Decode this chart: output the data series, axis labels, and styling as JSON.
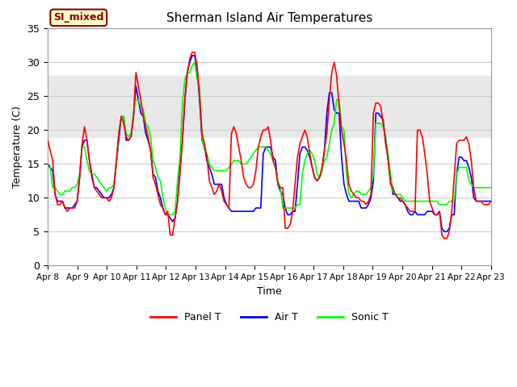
{
  "title": "Sherman Island Air Temperatures",
  "xlabel": "Time",
  "ylabel": "Temperature (C)",
  "ylim": [
    0,
    35
  ],
  "xlim": [
    0,
    15
  ],
  "x_tick_labels": [
    "Apr 8",
    "Apr 9",
    "Apr 10",
    "Apr 11",
    "Apr 12",
    "Apr 13",
    "Apr 14",
    "Apr 15",
    "Apr 16",
    "Apr 17",
    "Apr 18",
    "Apr 19",
    "Apr 20",
    "Apr 21",
    "Apr 22",
    "Apr 23"
  ],
  "gray_band_low": 19,
  "gray_band_high": 28,
  "label_text": "SI_mixed",
  "label_bg": "#ffffcc",
  "label_edge": "#8b0000",
  "legend_labels": [
    "Panel T",
    "Air T",
    "Sonic T"
  ],
  "line_colors": [
    "red",
    "blue",
    "lime"
  ],
  "plot_bg": "#ffffff",
  "grid_color": "#cccccc",
  "panel_t": [
    18.5,
    17.0,
    15.5,
    10.5,
    9.0,
    9.0,
    9.5,
    8.5,
    8.0,
    8.5,
    8.5,
    8.5,
    9.5,
    13.0,
    18.0,
    20.5,
    18.5,
    15.5,
    13.0,
    11.5,
    11.0,
    10.5,
    10.0,
    10.0,
    10.0,
    9.5,
    10.0,
    11.5,
    15.5,
    19.5,
    22.0,
    21.0,
    19.0,
    18.5,
    19.0,
    22.0,
    28.5,
    26.5,
    24.5,
    22.0,
    20.5,
    19.0,
    17.0,
    13.0,
    12.0,
    10.5,
    9.0,
    8.5,
    7.5,
    8.0,
    4.5,
    4.5,
    7.0,
    9.5,
    13.5,
    18.5,
    24.5,
    28.5,
    30.5,
    31.5,
    31.5,
    29.5,
    25.0,
    19.5,
    18.0,
    16.0,
    12.5,
    11.5,
    10.5,
    11.0,
    12.0,
    11.0,
    9.5,
    9.0,
    8.5,
    19.5,
    20.5,
    19.5,
    17.5,
    15.5,
    13.0,
    12.0,
    11.5,
    11.5,
    12.0,
    14.0,
    17.5,
    19.0,
    20.0,
    20.0,
    20.5,
    18.5,
    15.5,
    14.5,
    12.0,
    11.5,
    11.5,
    5.5,
    5.5,
    6.0,
    8.0,
    12.0,
    16.0,
    18.0,
    19.0,
    20.0,
    19.0,
    16.5,
    14.5,
    13.0,
    12.5,
    13.0,
    14.5,
    17.0,
    19.5,
    24.5,
    28.5,
    30.0,
    28.0,
    23.5,
    20.0,
    18.0,
    15.5,
    12.0,
    11.0,
    10.5,
    10.0,
    10.0,
    9.5,
    9.5,
    9.0,
    9.5,
    10.5,
    22.5,
    24.0,
    24.0,
    23.5,
    21.0,
    18.5,
    15.5,
    12.0,
    11.5,
    10.5,
    10.0,
    10.0,
    9.5,
    9.0,
    8.5,
    8.0,
    8.0,
    8.0,
    20.0,
    20.0,
    19.0,
    16.5,
    13.5,
    9.5,
    8.5,
    7.5,
    7.5,
    8.0,
    4.5,
    4.0,
    4.0,
    5.0,
    8.0,
    13.0,
    18.0,
    18.5,
    18.5,
    18.5,
    19.0,
    18.0,
    15.5,
    11.5,
    9.5,
    9.5,
    9.5,
    9.0,
    9.0,
    9.0,
    9.5
  ],
  "air_t": [
    15.0,
    14.5,
    14.0,
    10.5,
    9.5,
    9.5,
    9.5,
    8.5,
    8.5,
    8.5,
    8.5,
    9.0,
    9.5,
    13.0,
    17.5,
    18.5,
    18.5,
    15.5,
    13.5,
    11.5,
    11.5,
    11.0,
    10.5,
    10.0,
    10.0,
    10.0,
    10.5,
    11.5,
    15.0,
    18.5,
    22.0,
    22.0,
    18.5,
    18.5,
    19.0,
    22.0,
    26.5,
    24.5,
    22.5,
    22.0,
    19.5,
    18.5,
    17.0,
    13.5,
    13.0,
    11.0,
    10.0,
    8.5,
    7.5,
    7.5,
    7.0,
    6.5,
    7.0,
    9.5,
    14.5,
    18.5,
    24.5,
    28.5,
    30.0,
    31.0,
    31.0,
    29.0,
    24.5,
    18.5,
    17.5,
    15.5,
    14.5,
    13.5,
    12.0,
    12.0,
    12.0,
    12.0,
    10.0,
    9.0,
    8.5,
    8.0,
    8.0,
    8.0,
    8.0,
    8.0,
    8.0,
    8.0,
    8.0,
    8.0,
    8.0,
    8.5,
    8.5,
    8.5,
    16.5,
    17.5,
    17.5,
    17.5,
    16.0,
    15.5,
    12.0,
    11.0,
    10.5,
    8.5,
    7.5,
    7.5,
    8.0,
    8.0,
    12.0,
    16.5,
    17.5,
    17.5,
    17.0,
    16.0,
    14.5,
    13.0,
    12.5,
    13.0,
    14.0,
    17.0,
    22.5,
    25.5,
    25.5,
    23.0,
    22.5,
    22.5,
    16.0,
    12.0,
    10.5,
    9.5,
    9.5,
    9.5,
    9.5,
    9.5,
    8.5,
    8.5,
    8.5,
    9.0,
    10.0,
    12.5,
    22.5,
    22.5,
    22.0,
    21.5,
    18.0,
    16.0,
    13.0,
    10.5,
    10.5,
    10.0,
    9.5,
    9.5,
    9.0,
    8.0,
    7.5,
    7.5,
    8.0,
    7.5,
    7.5,
    7.5,
    7.5,
    8.0,
    8.0,
    8.0,
    7.5,
    7.5,
    8.0,
    5.5,
    5.0,
    5.0,
    5.5,
    7.5,
    7.5,
    13.5,
    16.0,
    16.0,
    15.5,
    15.5,
    14.5,
    13.0,
    10.0,
    9.5,
    9.5,
    9.5,
    9.5,
    9.5,
    9.5,
    9.5
  ],
  "sonic_t": [
    14.5,
    14.5,
    11.5,
    11.5,
    11.0,
    10.5,
    10.5,
    11.0,
    11.0,
    11.0,
    11.5,
    11.5,
    12.0,
    13.5,
    17.5,
    17.5,
    15.5,
    14.0,
    13.5,
    13.5,
    13.0,
    12.5,
    12.0,
    11.5,
    11.0,
    11.5,
    11.5,
    12.0,
    15.0,
    19.5,
    22.0,
    22.0,
    19.5,
    19.0,
    19.5,
    22.5,
    24.5,
    24.5,
    23.5,
    23.0,
    21.0,
    20.5,
    19.0,
    15.5,
    14.5,
    13.0,
    12.5,
    10.0,
    8.5,
    7.5,
    7.5,
    7.5,
    8.0,
    12.5,
    16.0,
    24.0,
    27.5,
    28.5,
    28.5,
    29.5,
    30.0,
    27.5,
    26.5,
    19.0,
    17.0,
    16.5,
    15.0,
    14.5,
    14.0,
    14.0,
    14.0,
    14.0,
    14.0,
    14.0,
    14.5,
    15.0,
    15.5,
    15.5,
    15.5,
    15.0,
    15.0,
    15.0,
    15.5,
    16.0,
    16.5,
    17.0,
    17.5,
    17.5,
    17.5,
    17.5,
    17.0,
    16.5,
    15.5,
    14.5,
    12.5,
    11.5,
    8.5,
    8.5,
    8.5,
    8.5,
    8.5,
    8.5,
    9.0,
    9.0,
    13.5,
    15.5,
    16.5,
    17.0,
    16.5,
    15.5,
    13.5,
    13.0,
    14.0,
    15.5,
    16.0,
    18.0,
    20.0,
    21.0,
    24.5,
    24.5,
    20.5,
    20.0,
    13.5,
    10.5,
    10.0,
    10.5,
    11.0,
    11.0,
    10.5,
    10.5,
    10.5,
    11.0,
    11.5,
    13.5,
    21.0,
    21.0,
    21.0,
    20.5,
    19.0,
    16.5,
    13.5,
    11.0,
    10.5,
    10.5,
    10.5,
    10.0,
    9.5,
    9.5,
    9.5,
    9.5,
    9.5,
    9.5,
    9.5,
    9.5,
    9.5,
    9.5,
    9.5,
    9.5,
    9.5,
    9.5,
    9.0,
    9.0,
    9.0,
    9.0,
    9.5,
    9.5,
    9.5,
    13.5,
    14.5,
    14.5,
    14.5,
    14.5,
    12.5,
    12.0,
    11.5,
    11.5,
    11.5,
    11.5,
    11.5,
    11.5,
    11.5,
    11.5
  ]
}
